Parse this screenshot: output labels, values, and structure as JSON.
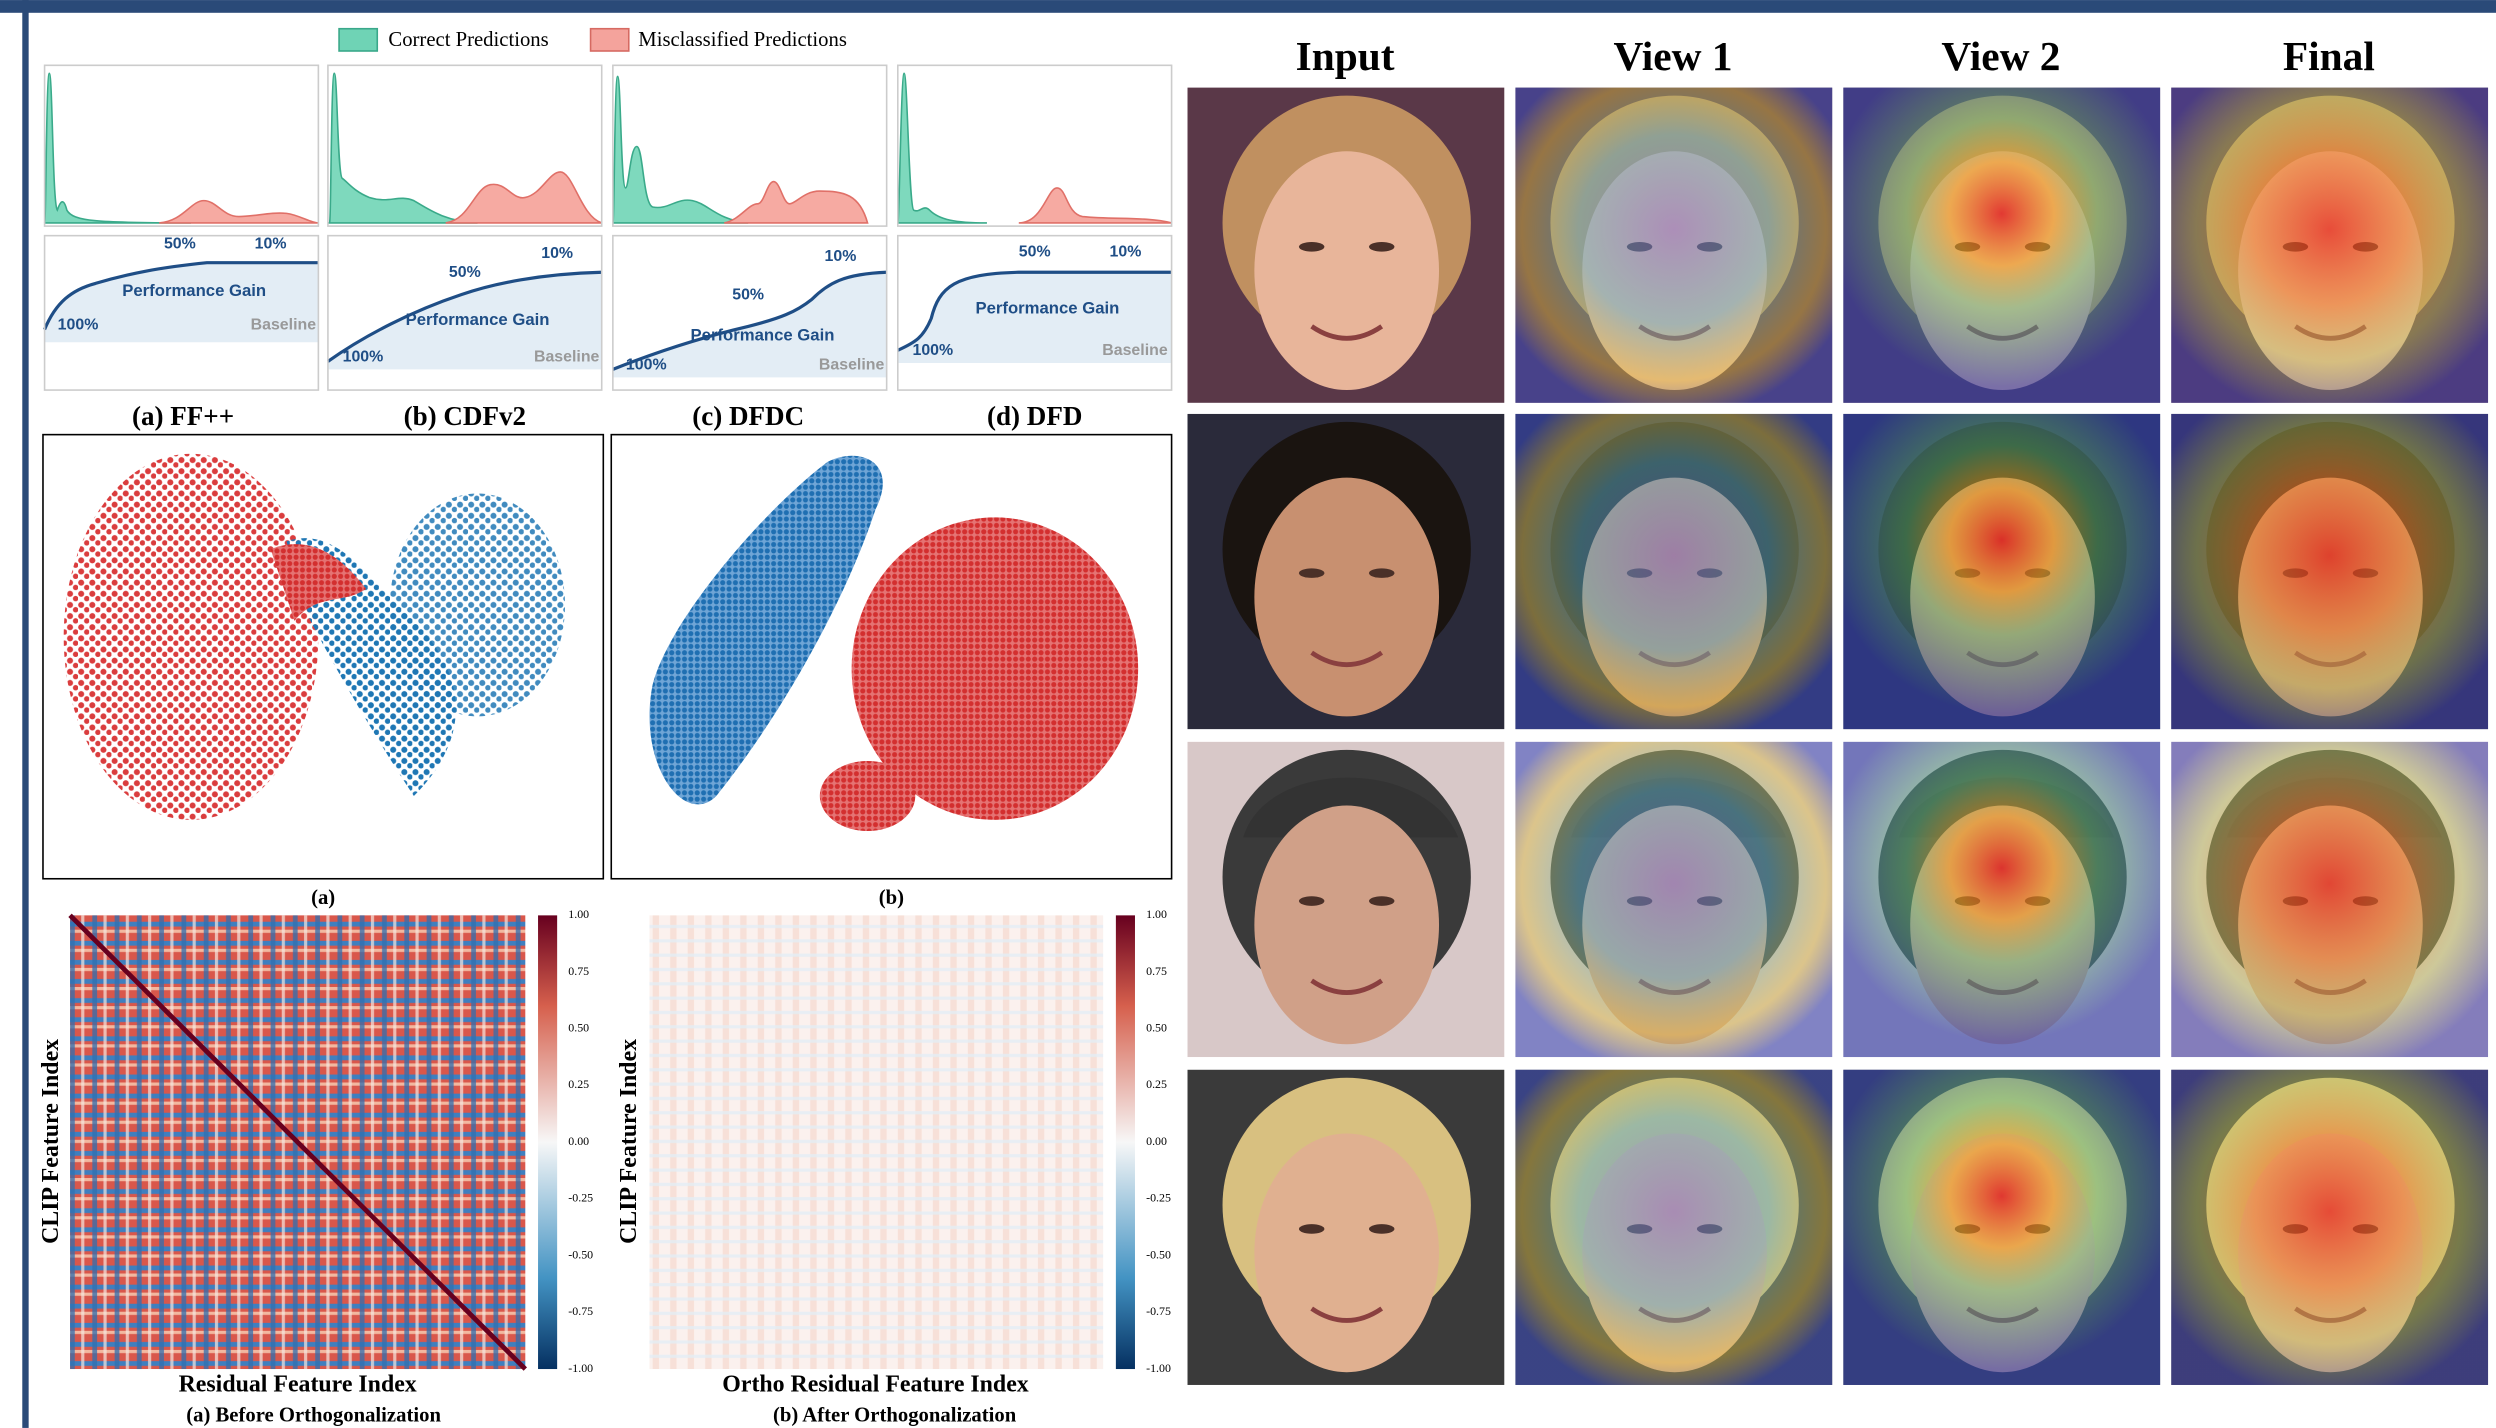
{
  "legend": [
    "Correct Predictions",
    "Misclassified Predictions"
  ],
  "density_panels": [
    {
      "caption": "(a) FF++",
      "mid": "50%",
      "low": "10%",
      "full": "100%",
      "gain": "Performance Gain",
      "baseline": "Baseline"
    },
    {
      "caption": "(b) CDFv2",
      "mid": "50%",
      "low": "10%",
      "full": "100%",
      "gain": "Performance Gain",
      "baseline": "Baseline"
    },
    {
      "caption": "(c) DFDC",
      "mid": "50%",
      "low": "10%",
      "full": "100%",
      "gain": "Performance Gain",
      "baseline": "Baseline"
    },
    {
      "caption": "(d) DFD",
      "mid": "50%",
      "low": "10%",
      "full": "100%",
      "gain": "Performance Gain",
      "baseline": "Baseline"
    }
  ],
  "tsne": {
    "captions": [
      "(a)",
      "(b)"
    ]
  },
  "heatmaps": [
    {
      "y_label": "CLIP Feature Index",
      "x_label": "Residual Feature Index",
      "caption": "(a) Before Orthogonalization",
      "colorbar": [
        "1.00",
        "0.75",
        "0.50",
        "0.25",
        "0.00",
        "-0.25",
        "-0.50",
        "-0.75",
        "-1.00"
      ]
    },
    {
      "y_label": "CLIP Feature Index",
      "x_label": "Ortho Residual Feature Index",
      "caption": "(b) After Orthogonalization",
      "colorbar": [
        "1.00",
        "0.75",
        "0.50",
        "0.25",
        "0.00",
        "-0.25",
        "-0.50",
        "-0.75",
        "-1.00"
      ]
    }
  ],
  "grid": {
    "columns": [
      "Input",
      "View 1",
      "View 2",
      "Final"
    ]
  }
}
